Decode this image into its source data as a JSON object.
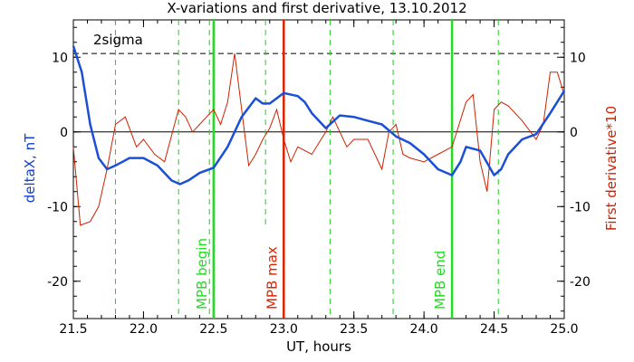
{
  "chart_data": {
    "type": "line",
    "title": "X-variations and first derivative, 13.10.2012",
    "xlabel": "UT, hours",
    "ylabel_left": "deltaX, nT",
    "ylabel_right": "First derivative*10",
    "xlim": [
      21.5,
      25.0
    ],
    "ylim": [
      -25,
      15
    ],
    "x_ticks": [
      "21.5",
      "22.0",
      "22.5",
      "23.0",
      "23.5",
      "24.0",
      "24.5",
      "25.0"
    ],
    "y_ticks": [
      "-20",
      "-10",
      "0",
      "10"
    ],
    "threshold": {
      "label": "2sigma",
      "value": 10.5
    },
    "zero_line": 0,
    "colors": {
      "deltaX": "#1a4fd6",
      "derivative": "#cc2200",
      "mpb_boundary": "#22dd22",
      "mpb_max": "#dd2200",
      "dashed_green": "#22cc22"
    },
    "series": [
      {
        "id": "deltaX",
        "x": [
          21.5,
          21.56,
          21.62,
          21.68,
          21.74,
          21.8,
          21.85,
          21.9,
          22.0,
          22.1,
          22.2,
          22.26,
          22.32,
          22.4,
          22.5,
          22.6,
          22.7,
          22.8,
          22.85,
          22.9,
          23.0,
          23.1,
          23.15,
          23.2,
          23.3,
          23.4,
          23.5,
          23.6,
          23.7,
          23.8,
          23.9,
          24.0,
          24.1,
          24.2,
          24.26,
          24.3,
          24.4,
          24.5,
          24.55,
          24.6,
          24.7,
          24.8,
          24.9,
          25.0
        ],
        "y": [
          11.5,
          8,
          1,
          -3.5,
          -5,
          -4.5,
          -4,
          -3.5,
          -3.5,
          -4.5,
          -6.5,
          -7,
          -6.5,
          -5.5,
          -4.8,
          -2,
          2,
          4.5,
          3.8,
          3.8,
          5.2,
          4.8,
          4,
          2.5,
          0.5,
          2.2,
          2,
          1.5,
          1,
          -0.6,
          -1.5,
          -3,
          -5,
          -5.8,
          -4,
          -2,
          -2.5,
          -5.8,
          -5,
          -3,
          -1,
          -0.3,
          2.5,
          5.5
        ]
      },
      {
        "id": "derivative",
        "x": [
          21.5,
          21.55,
          21.62,
          21.68,
          21.74,
          21.8,
          21.87,
          21.95,
          22.0,
          22.08,
          22.15,
          22.2,
          22.25,
          22.3,
          22.35,
          22.4,
          22.45,
          22.5,
          22.55,
          22.6,
          22.65,
          22.7,
          22.75,
          22.8,
          22.85,
          22.9,
          22.95,
          23.0,
          23.05,
          23.1,
          23.2,
          23.3,
          23.35,
          23.4,
          23.45,
          23.5,
          23.6,
          23.7,
          23.75,
          23.8,
          23.85,
          23.9,
          24.0,
          24.1,
          24.2,
          24.25,
          24.3,
          24.35,
          24.4,
          24.45,
          24.5,
          24.55,
          24.6,
          24.7,
          24.8,
          24.85,
          24.9,
          24.95,
          25.0
        ],
        "y": [
          -2,
          -12.5,
          -12,
          -10,
          -5,
          1,
          2,
          -2,
          -1,
          -3,
          -4,
          -0.5,
          3,
          2,
          0,
          1,
          2,
          3,
          1,
          4,
          10.5,
          3,
          -4.5,
          -3,
          -1,
          0.5,
          3,
          -1,
          -4,
          -2,
          -3,
          0,
          2,
          0,
          -2,
          -1,
          -1,
          -5,
          0,
          1,
          -3,
          -3.5,
          -4,
          -3,
          -2,
          1,
          4,
          5,
          -4,
          -8,
          3,
          4,
          3.5,
          1.5,
          -1,
          1,
          8,
          8,
          5
        ]
      }
    ],
    "vertical_lines": [
      {
        "x": 22.5,
        "label": "MPB begin",
        "style": "solid",
        "color": "#22dd22"
      },
      {
        "x": 23.0,
        "label": "MPB max",
        "style": "solid",
        "color": "#dd2200"
      },
      {
        "x": 24.2,
        "label": "MPB end",
        "style": "solid",
        "color": "#22dd22"
      }
    ],
    "dashed_lines_x": [
      21.8,
      22.25,
      22.47,
      22.87,
      23.33,
      23.78,
      24.53
    ],
    "dashed_line_short_x": [
      22.87
    ]
  }
}
